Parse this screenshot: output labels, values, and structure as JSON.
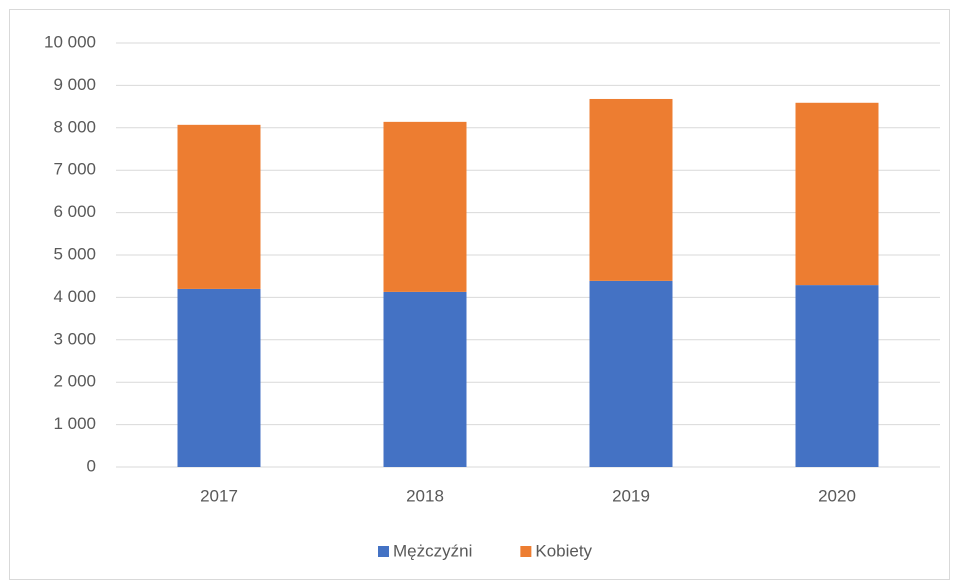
{
  "chart_data": {
    "type": "stacked_bar",
    "categories": [
      "2017",
      "2018",
      "2019",
      "2020"
    ],
    "series": [
      {
        "name": "Mężczyźni",
        "color": "#4472c4",
        "values": [
          4200,
          4130,
          4390,
          4290
        ]
      },
      {
        "name": "Kobiety",
        "color": "#ed7d31",
        "values": [
          3870,
          4010,
          4290,
          4300
        ]
      }
    ],
    "ylim": [
      0,
      10000
    ],
    "yticks": [
      0,
      {
        "value": 1000,
        "label": "1 000"
      },
      {
        "value": 2000,
        "label": "2 000"
      },
      {
        "value": 3000,
        "label": "3 000"
      },
      {
        "value": 4000,
        "label": "4 000"
      },
      {
        "value": 5000,
        "label": "5 000"
      },
      {
        "value": 6000,
        "label": "6 000"
      },
      {
        "value": 7000,
        "label": "7 000"
      },
      {
        "value": 8000,
        "label": "8 000"
      },
      {
        "value": 9000,
        "label": "9 000"
      },
      {
        "value": 10000,
        "label": "10 000"
      }
    ],
    "grid": true,
    "legend": "bottom"
  }
}
